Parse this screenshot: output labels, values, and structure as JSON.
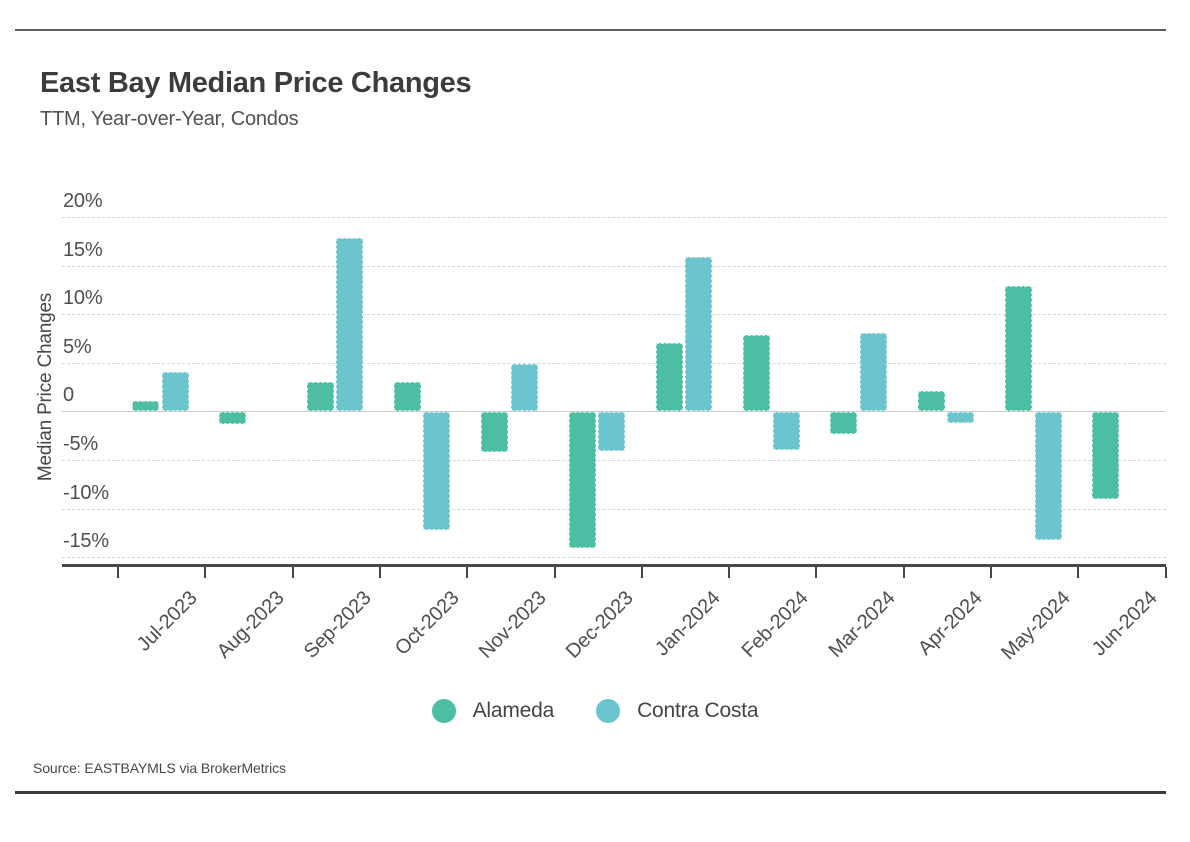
{
  "page": {
    "title": "East Bay Median Price Changes",
    "subtitle": "TTM, Year-over-Year, Condos",
    "source": "Source:  EASTBAYMLS via BrokerMetrics"
  },
  "chart_data": {
    "type": "bar",
    "title": "East Bay Median Price Changes",
    "subtitle": "TTM, Year-over-Year, Condos",
    "xlabel": "",
    "ylabel": "Median Price Changes",
    "categories": [
      "Jul-2023",
      "Aug-2023",
      "Sep-2023",
      "Oct-2023",
      "Nov-2023",
      "Dec-2023",
      "Jan-2024",
      "Feb-2024",
      "Mar-2024",
      "Apr-2024",
      "May-2024",
      "Jun-2024"
    ],
    "series": [
      {
        "name": "Alameda",
        "color": "#4CBEA3",
        "values": [
          1.1,
          -1.2,
          3.0,
          3.0,
          -4.1,
          -14.0,
          7.0,
          7.9,
          -2.2,
          2.1,
          12.9,
          -8.9
        ]
      },
      {
        "name": "Contra Costa",
        "color": "#6BC4CE",
        "values": [
          4.1,
          0,
          17.9,
          -12.1,
          4.9,
          -4.0,
          15.9,
          -3.9,
          8.1,
          -1.1,
          -13.1,
          0
        ]
      }
    ],
    "y_axis": {
      "ticks": [
        20,
        15,
        10,
        5,
        0,
        -5,
        -10,
        -15
      ],
      "tick_labels": [
        "20%",
        "15%",
        "10%",
        "5%",
        "0",
        "-5%",
        "-10%",
        "-15%"
      ]
    },
    "ylim": [
      -16,
      20
    ],
    "unit": "percent",
    "grid": "horizontal-dashed",
    "legend_position": "bottom"
  },
  "legend": {
    "items": [
      {
        "label": "Alameda",
        "color": "#4CBEA3"
      },
      {
        "label": "Contra Costa",
        "color": "#6BC4CE"
      }
    ]
  }
}
